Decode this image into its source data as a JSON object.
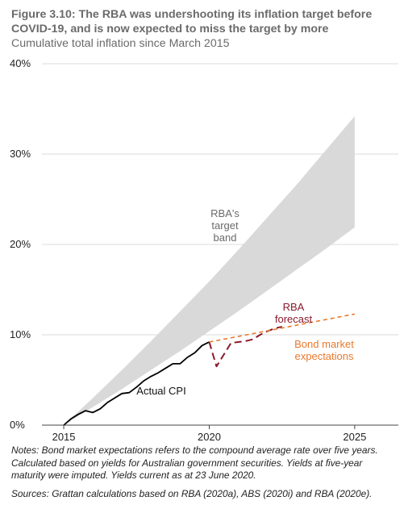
{
  "figure": {
    "title": "Figure 3.10: The RBA was undershooting its inflation target before COVID-19, and is now expected to miss the target by more",
    "subtitle": "Cumulative total inflation since March 2015",
    "notes": "Notes: Bond market expectations refers to the compound average rate over five years. Calculated based on yields for Australian government securities. Yields at five-year maturity were imputed. Yields current as at 23 June 2020.",
    "sources": "Sources: Grattan calculations based on RBA (2020a), ABS (2020i) and RBA (2020e)."
  },
  "colors": {
    "band": "#d9d9d9",
    "actual": "#000000",
    "forecast": "#8b1a2b",
    "bond": "#e8792d",
    "axis": "#444444",
    "label_grey": "#6a6a6a"
  },
  "chart_data": {
    "type": "line",
    "xlim": [
      2014.25,
      2026.5
    ],
    "ylim": [
      0,
      40
    ],
    "x_ticks": [
      2015,
      2020,
      2025
    ],
    "x_tick_labels": [
      "2015",
      "2020",
      "2025"
    ],
    "y_ticks": [
      0,
      10,
      20,
      30,
      40
    ],
    "y_tick_labels": [
      "0%",
      "10%",
      "20%",
      "30%",
      "40%"
    ],
    "grid": "horizontal",
    "series": [
      {
        "name": "RBA's target band",
        "kind": "band",
        "label_lines": [
          "RBA's",
          "target",
          "band"
        ],
        "x": [
          2015.0,
          2016.0,
          2017.0,
          2018.0,
          2019.0,
          2020.0,
          2021.0,
          2022.0,
          2023.0,
          2024.0,
          2025.0
        ],
        "lower": [
          0.0,
          2.0,
          4.0,
          6.1,
          8.2,
          10.4,
          12.6,
          14.9,
          17.2,
          19.5,
          21.9
        ],
        "upper": [
          0.0,
          3.0,
          6.1,
          9.3,
          12.6,
          15.9,
          19.4,
          23.0,
          26.6,
          30.4,
          34.2
        ]
      },
      {
        "name": "Actual CPI",
        "kind": "solid",
        "label_lines": [
          "Actual CPI"
        ],
        "x": [
          2015.0,
          2015.25,
          2015.5,
          2015.75,
          2016.0,
          2016.25,
          2016.5,
          2016.75,
          2017.0,
          2017.25,
          2017.5,
          2017.75,
          2018.0,
          2018.25,
          2018.5,
          2018.75,
          2019.0,
          2019.25,
          2019.5,
          2019.75,
          2020.0
        ],
        "y": [
          0.0,
          0.7,
          1.2,
          1.6,
          1.4,
          1.8,
          2.5,
          3.0,
          3.5,
          3.6,
          4.2,
          4.9,
          5.4,
          5.8,
          6.3,
          6.8,
          6.8,
          7.5,
          8.0,
          8.8,
          9.2
        ]
      },
      {
        "name": "RBA forecast",
        "kind": "dashed",
        "label_lines": [
          "RBA",
          "forecast"
        ],
        "x": [
          2020.0,
          2020.25,
          2020.5,
          2020.75,
          2021.0,
          2021.25,
          2021.5,
          2021.75,
          2022.0,
          2022.25,
          2022.5
        ],
        "y": [
          9.2,
          6.5,
          7.8,
          9.1,
          9.2,
          9.3,
          9.5,
          10.0,
          10.4,
          10.7,
          10.9
        ]
      },
      {
        "name": "Bond market expectations",
        "kind": "dotted",
        "label_lines": [
          "Bond market",
          "expectations"
        ],
        "x": [
          2020.0,
          2025.0
        ],
        "y": [
          9.2,
          12.3
        ]
      }
    ]
  }
}
